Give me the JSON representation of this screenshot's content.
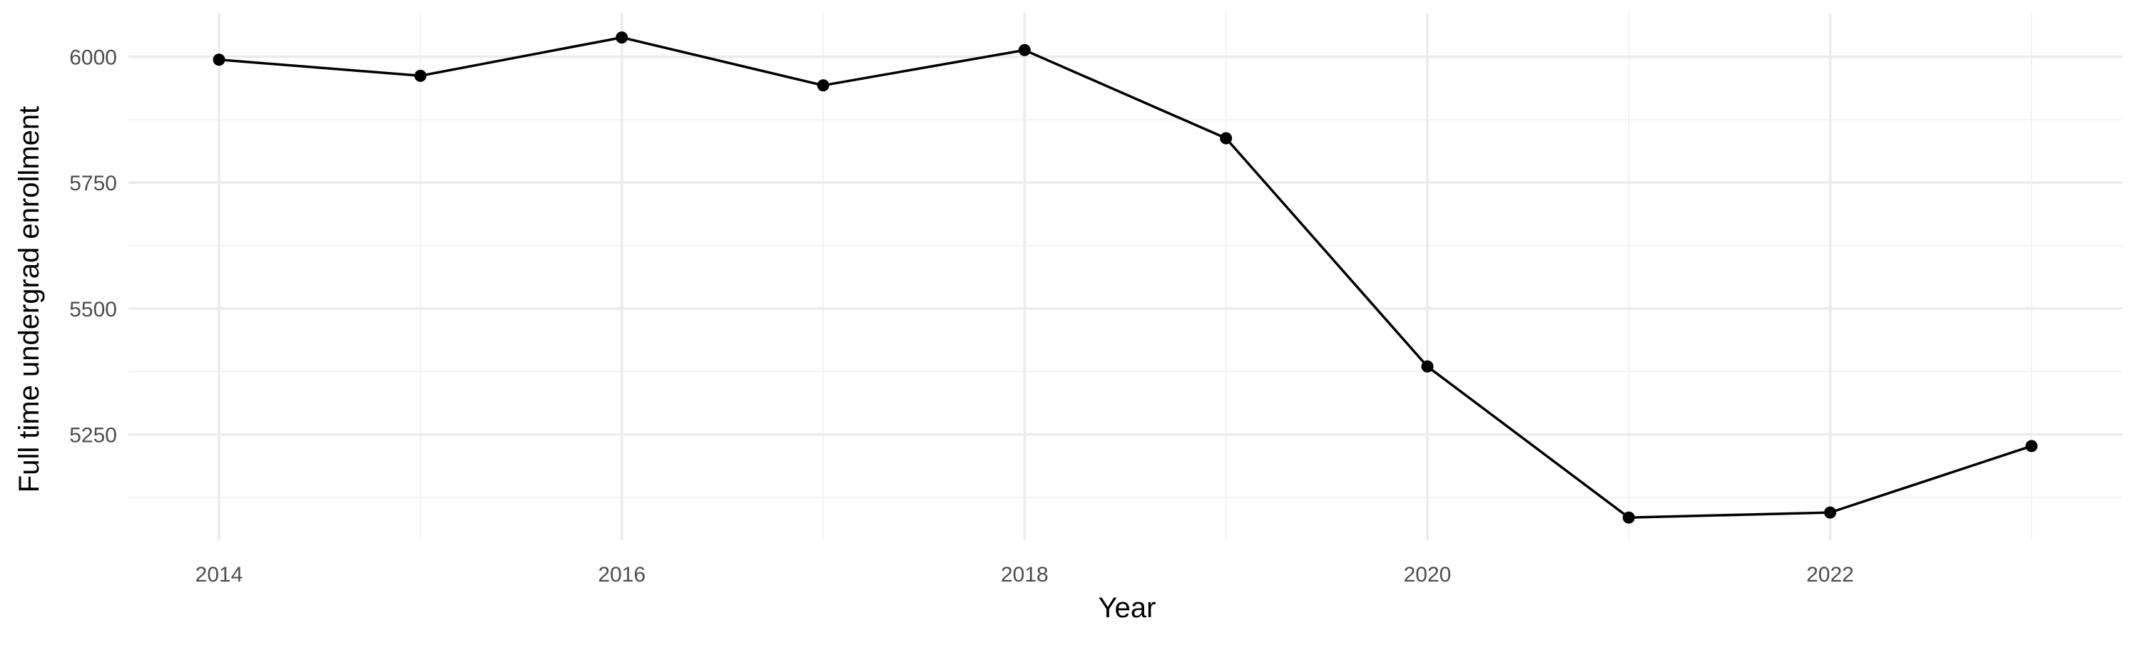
{
  "chart_data": {
    "type": "line",
    "title": "",
    "xlabel": "Year",
    "ylabel": "Full time undergrad enrollment",
    "x": [
      2014,
      2015,
      2016,
      2017,
      2018,
      2019,
      2020,
      2021,
      2022,
      2023
    ],
    "series": [
      {
        "values": [
          5994,
          5962,
          6038,
          5943,
          6013,
          5838,
          5385,
          5085,
          5095,
          5227
        ]
      }
    ],
    "xlim": [
      2013.55,
      2023.45
    ],
    "ylim": [
      5040,
      6087
    ],
    "x_ticks": [
      2014,
      2016,
      2018,
      2020,
      2022
    ],
    "x_tick_labels": [
      "2014",
      "2016",
      "2018",
      "2020",
      "2022"
    ],
    "y_ticks": [
      5250,
      5500,
      5750,
      6000
    ],
    "y_tick_labels": [
      "5250",
      "5500",
      "5750",
      "6000"
    ],
    "grid": true,
    "legend": "none",
    "colors": {
      "line": "#000000",
      "points": "#000000",
      "grid_major": "#ebebeb",
      "grid_minor": "#f3f3f3",
      "tick_text": "#4d4d4d",
      "axis_title": "#000000"
    }
  }
}
